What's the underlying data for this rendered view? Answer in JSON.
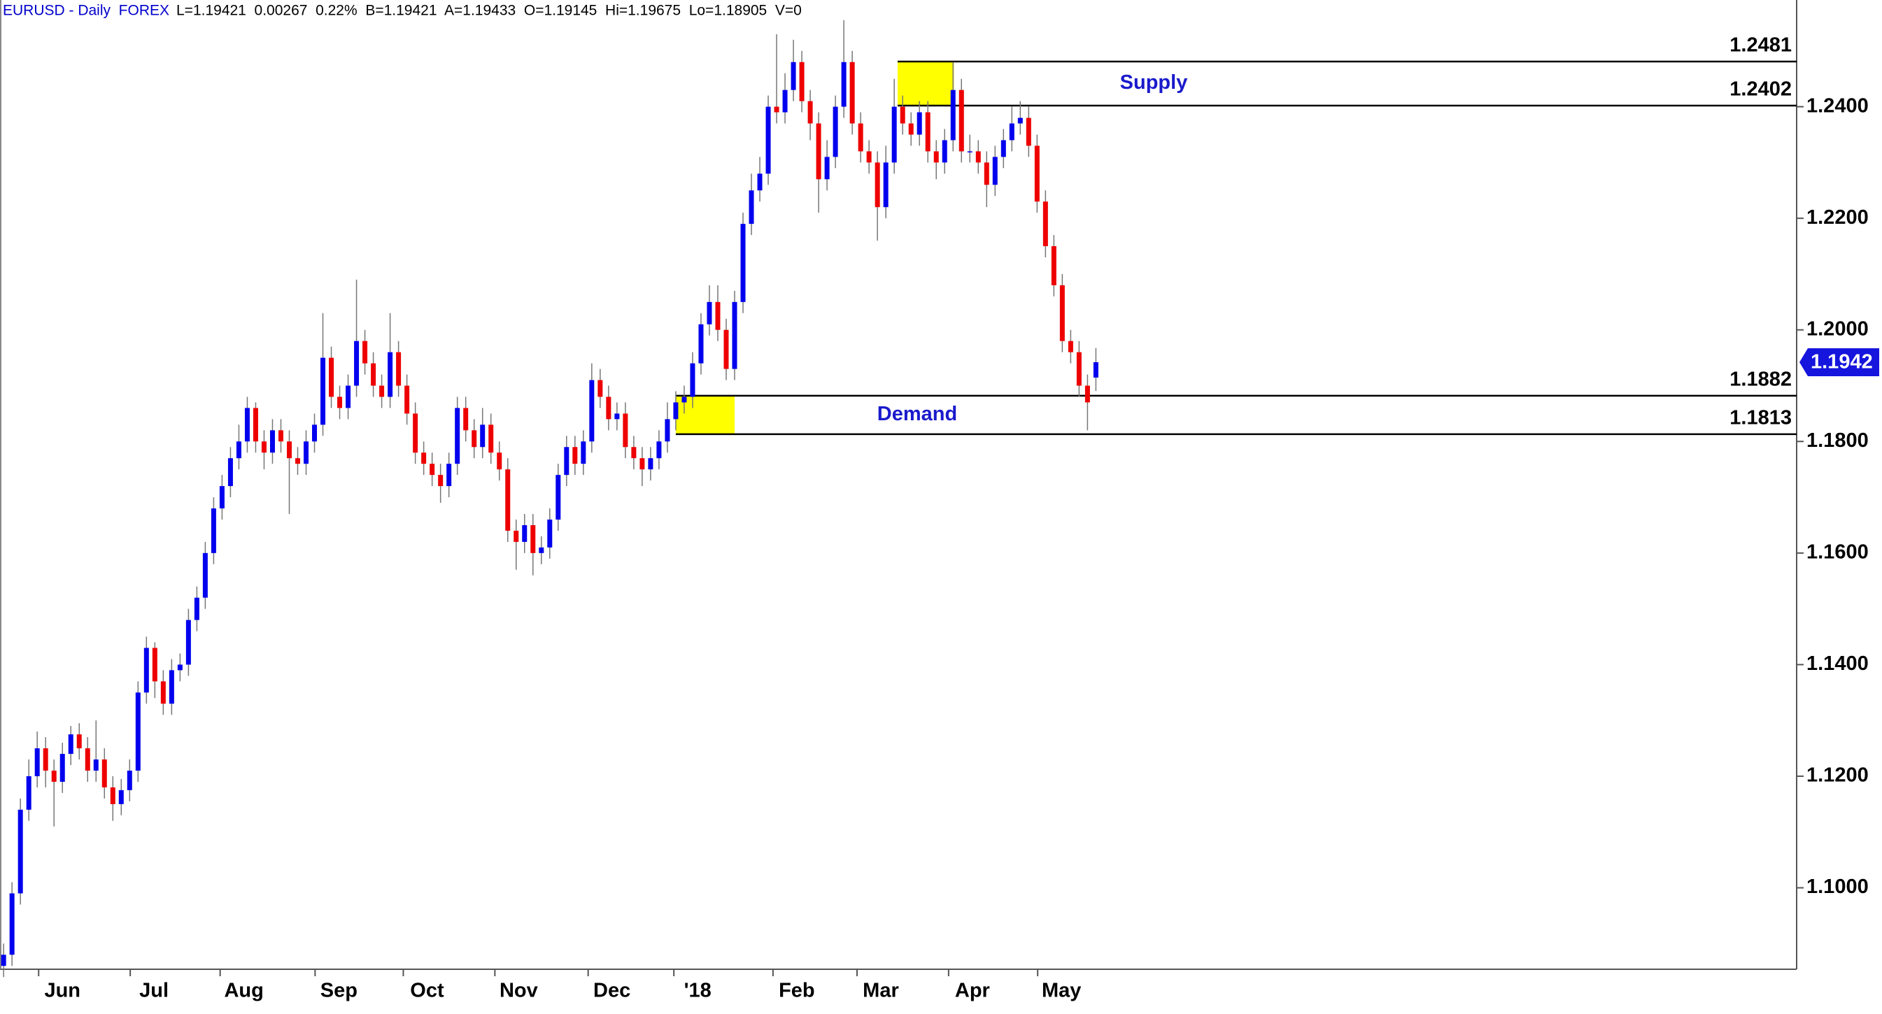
{
  "chart_data": {
    "type": "candlestick",
    "title": "EURUSD - Daily  FOREX",
    "subtitle": "L=1.19421  0.00267  0.22%  B=1.19421  A=1.19433  O=1.19145  Hi=1.19675  Lo=1.18905  V=0",
    "up_color": "#0000ee",
    "down_color": "#ee0000",
    "open": [
      1.086,
      1.088,
      1.099,
      1.114,
      1.12,
      1.125,
      1.121,
      1.119,
      1.124,
      1.1275,
      1.125,
      1.121,
      1.123,
      1.118,
      1.115,
      1.1175,
      1.121,
      1.135,
      1.143,
      1.137,
      1.133,
      1.139,
      1.14,
      1.148,
      1.152,
      1.16,
      1.168,
      1.172,
      1.177,
      1.18,
      1.186,
      1.18,
      1.178,
      1.182,
      1.18,
      1.177,
      1.176,
      1.18,
      1.183,
      1.195,
      1.188,
      1.186,
      1.19,
      1.198,
      1.194,
      1.19,
      1.188,
      1.196,
      1.19,
      1.185,
      1.178,
      1.176,
      1.174,
      1.172,
      1.176,
      1.186,
      1.182,
      1.179,
      1.183,
      1.178,
      1.175,
      1.164,
      1.162,
      1.165,
      1.16,
      1.161,
      1.166,
      1.174,
      1.179,
      1.176,
      1.18,
      1.191,
      1.188,
      1.184,
      1.185,
      1.179,
      1.177,
      1.175,
      1.177,
      1.18,
      1.184,
      1.187,
      1.188,
      1.194,
      1.201,
      1.205,
      1.2,
      1.193,
      1.205,
      1.219,
      1.225,
      1.228,
      1.24,
      1.239,
      1.243,
      1.248,
      1.241,
      1.237,
      1.227,
      1.231,
      1.24,
      1.248,
      1.237,
      1.232,
      1.23,
      1.222,
      1.23,
      1.24,
      1.237,
      1.235,
      1.239,
      1.232,
      1.23,
      1.234,
      1.243,
      1.232,
      1.232,
      1.23,
      1.226,
      1.231,
      1.234,
      1.237,
      1.238,
      1.233,
      1.223,
      1.215,
      1.208,
      1.198,
      1.196,
      1.19,
      1.19145
    ],
    "high": [
      1.09,
      1.101,
      1.116,
      1.123,
      1.128,
      1.127,
      1.123,
      1.126,
      1.129,
      1.1295,
      1.127,
      1.13,
      1.125,
      1.12,
      1.1195,
      1.123,
      1.137,
      1.145,
      1.144,
      1.139,
      1.141,
      1.142,
      1.15,
      1.154,
      1.162,
      1.17,
      1.174,
      1.179,
      1.183,
      1.188,
      1.187,
      1.182,
      1.184,
      1.184,
      1.182,
      1.179,
      1.182,
      1.185,
      1.203,
      1.197,
      1.19,
      1.192,
      1.209,
      1.2,
      1.196,
      1.192,
      1.203,
      1.198,
      1.192,
      1.187,
      1.18,
      1.178,
      1.176,
      1.178,
      1.188,
      1.188,
      1.184,
      1.186,
      1.185,
      1.18,
      1.177,
      1.166,
      1.167,
      1.167,
      1.163,
      1.168,
      1.176,
      1.181,
      1.181,
      1.182,
      1.194,
      1.193,
      1.19,
      1.187,
      1.187,
      1.181,
      1.179,
      1.179,
      1.182,
      1.187,
      1.189,
      1.19,
      1.196,
      1.203,
      1.208,
      1.208,
      1.202,
      1.207,
      1.221,
      1.228,
      1.231,
      1.242,
      1.253,
      1.246,
      1.252,
      1.25,
      1.243,
      1.239,
      1.234,
      1.242,
      1.2555,
      1.25,
      1.239,
      1.234,
      1.232,
      1.233,
      1.245,
      1.242,
      1.239,
      1.241,
      1.241,
      1.234,
      1.236,
      1.248,
      1.245,
      1.235,
      1.234,
      1.232,
      1.233,
      1.236,
      1.24,
      1.241,
      1.24,
      1.235,
      1.225,
      1.217,
      1.21,
      1.2,
      1.198,
      1.192,
      1.19675
    ],
    "low": [
      1.084,
      1.086,
      1.097,
      1.112,
      1.118,
      1.118,
      1.111,
      1.117,
      1.122,
      1.123,
      1.119,
      1.119,
      1.116,
      1.112,
      1.113,
      1.1155,
      1.119,
      1.133,
      1.134,
      1.131,
      1.131,
      1.137,
      1.138,
      1.146,
      1.15,
      1.158,
      1.166,
      1.17,
      1.175,
      1.178,
      1.178,
      1.175,
      1.176,
      1.178,
      1.167,
      1.174,
      1.174,
      1.178,
      1.181,
      1.186,
      1.184,
      1.184,
      1.188,
      1.192,
      1.188,
      1.186,
      1.186,
      1.188,
      1.183,
      1.176,
      1.174,
      1.172,
      1.169,
      1.17,
      1.174,
      1.18,
      1.177,
      1.177,
      1.176,
      1.173,
      1.162,
      1.157,
      1.16,
      1.156,
      1.158,
      1.159,
      1.164,
      1.172,
      1.174,
      1.174,
      1.178,
      1.186,
      1.182,
      1.182,
      1.177,
      1.175,
      1.172,
      1.173,
      1.175,
      1.178,
      1.182,
      1.185,
      1.186,
      1.192,
      1.199,
      1.198,
      1.191,
      1.191,
      1.203,
      1.217,
      1.223,
      1.226,
      1.237,
      1.237,
      1.241,
      1.239,
      1.234,
      1.221,
      1.225,
      1.229,
      1.238,
      1.235,
      1.23,
      1.228,
      1.216,
      1.22,
      1.228,
      1.235,
      1.233,
      1.233,
      1.23,
      1.227,
      1.228,
      1.232,
      1.23,
      1.23,
      1.228,
      1.222,
      1.224,
      1.229,
      1.232,
      1.235,
      1.231,
      1.221,
      1.213,
      1.206,
      1.196,
      1.194,
      1.188,
      1.182,
      1.18905
    ],
    "close": [
      1.088,
      1.099,
      1.114,
      1.12,
      1.125,
      1.121,
      1.119,
      1.124,
      1.1275,
      1.125,
      1.121,
      1.123,
      1.118,
      1.115,
      1.1175,
      1.121,
      1.135,
      1.143,
      1.137,
      1.133,
      1.139,
      1.14,
      1.148,
      1.152,
      1.16,
      1.168,
      1.172,
      1.177,
      1.18,
      1.186,
      1.18,
      1.178,
      1.182,
      1.18,
      1.177,
      1.176,
      1.18,
      1.183,
      1.195,
      1.188,
      1.186,
      1.19,
      1.198,
      1.194,
      1.19,
      1.188,
      1.196,
      1.19,
      1.185,
      1.178,
      1.176,
      1.174,
      1.172,
      1.176,
      1.186,
      1.182,
      1.179,
      1.183,
      1.178,
      1.175,
      1.164,
      1.162,
      1.165,
      1.16,
      1.161,
      1.166,
      1.174,
      1.179,
      1.176,
      1.18,
      1.191,
      1.188,
      1.184,
      1.185,
      1.179,
      1.177,
      1.175,
      1.177,
      1.18,
      1.184,
      1.187,
      1.188,
      1.194,
      1.201,
      1.205,
      1.2,
      1.193,
      1.205,
      1.219,
      1.225,
      1.228,
      1.24,
      1.239,
      1.243,
      1.248,
      1.241,
      1.237,
      1.227,
      1.231,
      1.24,
      1.248,
      1.237,
      1.232,
      1.23,
      1.222,
      1.23,
      1.24,
      1.237,
      1.235,
      1.239,
      1.232,
      1.23,
      1.234,
      1.243,
      1.232,
      1.232,
      1.23,
      1.226,
      1.231,
      1.234,
      1.237,
      1.238,
      1.233,
      1.223,
      1.215,
      1.208,
      1.198,
      1.196,
      1.19,
      1.187,
      1.19421
    ],
    "xlim": [
      -0.43,
      213.4
    ],
    "xticks": [
      {
        "value": 7,
        "label": "Jun"
      },
      {
        "value": 17.9,
        "label": "Jul"
      },
      {
        "value": 28.6,
        "label": "Aug"
      },
      {
        "value": 39.9,
        "label": "Sep"
      },
      {
        "value": 50.4,
        "label": "Oct"
      },
      {
        "value": 61.3,
        "label": "Nov"
      },
      {
        "value": 72.4,
        "label": "Dec"
      },
      {
        "value": 82.6,
        "label": "'18"
      },
      {
        "value": 94.4,
        "label": "Feb"
      },
      {
        "value": 104.4,
        "label": "Mar"
      },
      {
        "value": 115.3,
        "label": "Apr"
      },
      {
        "value": 125.9,
        "label": "May"
      }
    ],
    "ylim": [
      1.0854,
      1.2585
    ],
    "yticks": [
      {
        "value": 1.1,
        "label": "1.1000"
      },
      {
        "value": 1.12,
        "label": "1.1200"
      },
      {
        "value": 1.14,
        "label": "1.1400"
      },
      {
        "value": 1.16,
        "label": "1.1600"
      },
      {
        "value": 1.18,
        "label": "1.1800"
      },
      {
        "value": 1.2,
        "label": "1.2000"
      },
      {
        "value": 1.22,
        "label": "1.2200"
      },
      {
        "value": 1.24,
        "label": "1.2400"
      }
    ],
    "current_price": 1.1942,
    "zone_color": "#ffff00",
    "zones": [
      {
        "name": "Supply",
        "top": 1.2481,
        "bottom": 1.2402,
        "x_start": 106.4,
        "x_end": 113.1
      },
      {
        "name": "Demand",
        "top": 1.1882,
        "bottom": 1.1813,
        "x_start": 80,
        "x_end": 87
      }
    ]
  }
}
